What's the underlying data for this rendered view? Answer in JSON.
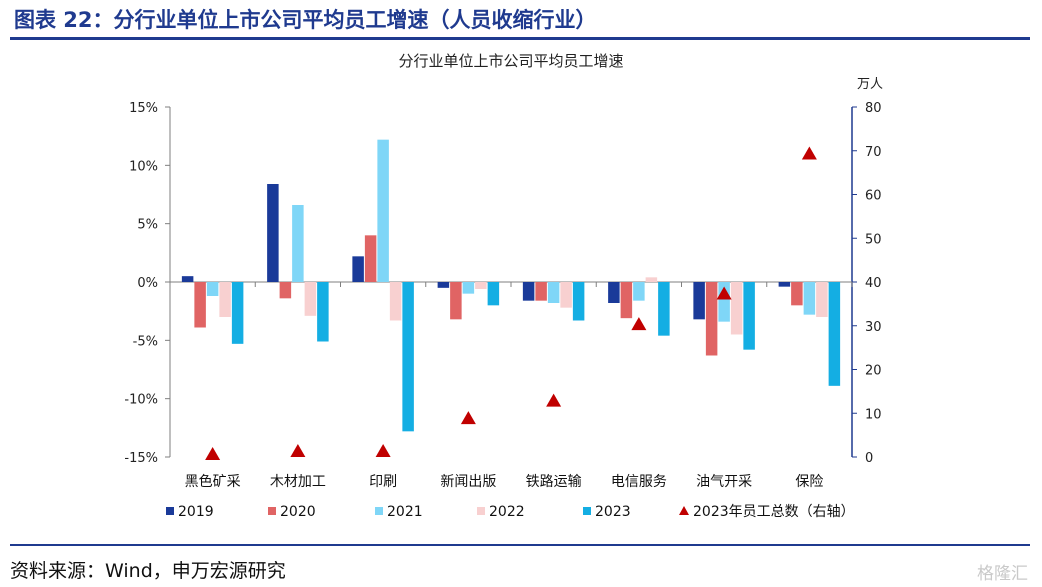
{
  "figure_title": "图表 22：分行业单位上市公司平均员工增速（人员收缩行业）",
  "source_note": "资料来源：Wind，申万宏源研究",
  "watermark": "格隆汇",
  "chart_data": {
    "type": "bar",
    "title": "分行业单位上市公司平均员工增速",
    "right_axis_unit": "万人",
    "categories": [
      "黑色矿采",
      "木材加工",
      "印刷",
      "新闻出版",
      "铁路运输",
      "电信服务",
      "油气开采",
      "保险"
    ],
    "left_axis": {
      "range": [
        -15,
        15
      ],
      "ticks": [
        15,
        10,
        5,
        0,
        -5,
        -10,
        -15
      ],
      "tick_labels": [
        "15%",
        "10%",
        "5%",
        "0%",
        "-5%",
        "-10%",
        "-15%"
      ]
    },
    "right_axis": {
      "range": [
        0,
        80
      ],
      "ticks": [
        80,
        70,
        60,
        50,
        40,
        30,
        20,
        10,
        0
      ],
      "tick_labels": [
        "80",
        "70",
        "60",
        "50",
        "40",
        "30",
        "20",
        "10",
        "0"
      ]
    },
    "series": [
      {
        "name": "2019",
        "color": "#1a3a99",
        "values": [
          0.5,
          8.4,
          2.2,
          -0.5,
          -1.6,
          -1.8,
          -3.2,
          -0.4
        ]
      },
      {
        "name": "2020",
        "color": "#e06464",
        "values": [
          -3.9,
          -1.4,
          4.0,
          -3.2,
          -1.6,
          -3.1,
          -6.3,
          -2.0
        ]
      },
      {
        "name": "2021",
        "color": "#7fd6f7",
        "values": [
          -1.2,
          6.6,
          12.2,
          -1.0,
          -1.8,
          -1.6,
          -3.4,
          -2.8
        ]
      },
      {
        "name": "2022",
        "color": "#f8d0d0",
        "values": [
          -3.0,
          -2.9,
          -3.3,
          -0.6,
          -2.2,
          0.4,
          -4.5,
          -3.0
        ]
      },
      {
        "name": "2023",
        "color": "#14aee3",
        "values": [
          -5.3,
          -5.1,
          -12.8,
          -2.0,
          -3.3,
          -4.6,
          -5.8,
          -8.9
        ]
      }
    ],
    "markers": {
      "name": "2023年员工总数（右轴）",
      "color": "#c00000",
      "axis": "right",
      "values": [
        0.8,
        1.5,
        1.5,
        9.0,
        13.0,
        30.5,
        37.5,
        69.5
      ]
    },
    "grid": false,
    "legend": "bottom"
  }
}
